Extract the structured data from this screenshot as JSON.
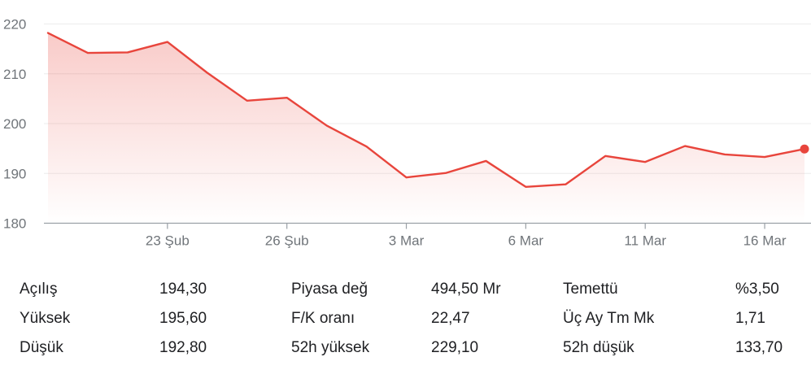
{
  "chart_data": {
    "type": "area",
    "xlabel": "",
    "ylabel": "",
    "ylim": [
      180,
      222
    ],
    "y_ticks": [
      180,
      190,
      200,
      210,
      220
    ],
    "y_tick_labels": [
      "180",
      "190",
      "200",
      "210",
      "220"
    ],
    "x_ticks": [
      {
        "index": 3,
        "label": "23 Şub"
      },
      {
        "index": 6,
        "label": "26 Şub"
      },
      {
        "index": 9,
        "label": "3 Mar"
      },
      {
        "index": 12,
        "label": "6 Mar"
      },
      {
        "index": 15,
        "label": "11 Mar"
      },
      {
        "index": 18,
        "label": "16 Mar"
      }
    ],
    "grid": true,
    "values": [
      218.2,
      214.2,
      214.3,
      216.4,
      210.2,
      204.6,
      205.2,
      199.6,
      195.4,
      189.2,
      190.1,
      192.5,
      187.3,
      187.8,
      193.5,
      192.3,
      195.5,
      193.8,
      193.3,
      194.9
    ],
    "line_color": "#e8453c",
    "fill_color": "#e8453c"
  },
  "stats": {
    "rows": [
      {
        "l1": "Açılış",
        "v1": "194,30",
        "l2": "Piyasa değ",
        "v2": "494,50 Mr",
        "l3": "Temettü",
        "v3": "%3,50"
      },
      {
        "l1": "Yüksek",
        "v1": "195,60",
        "l2": "F/K oranı",
        "v2": "22,47",
        "l3": "Üç Ay Tm Mk",
        "v3": "1,71"
      },
      {
        "l1": "Düşük",
        "v1": "192,80",
        "l2": "52h yüksek",
        "v2": "229,10",
        "l3": "52h düşük",
        "v3": "133,70"
      }
    ]
  }
}
